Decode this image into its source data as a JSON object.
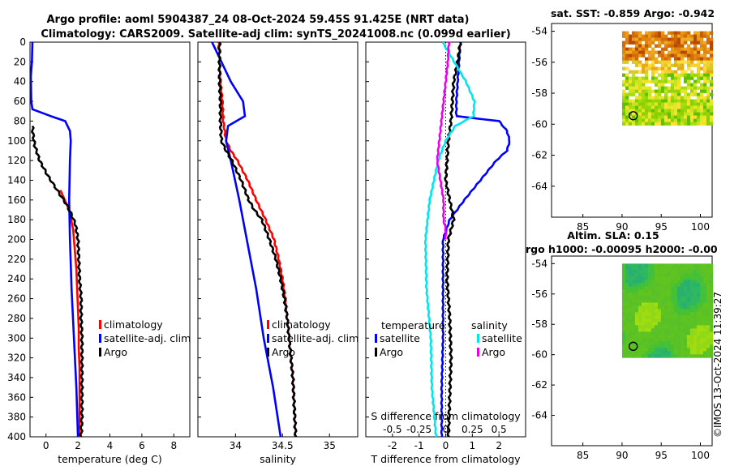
{
  "header": {
    "line1": "Argo profile: aoml 5904387_24 08-Oct-2024 59.45S 91.425E (NRT data)",
    "line2": "Climatology: CARS2009. Satellite-adj clim: synTS_20241008.nc (0.099d earlier)"
  },
  "watermark": "©IMOS 13-Oct-2024 11:39:27",
  "colors": {
    "climatology": "#ff0000",
    "satellite": "#0000ff",
    "argo": "#000000",
    "salinity_satellite": "#00e5ee",
    "salinity_argo": "#ee00ee"
  },
  "chart_data": [
    {
      "type": "line",
      "id": "temperature",
      "xlabel": "temperature (deg C)",
      "xlim": [
        -1,
        9
      ],
      "ylim": [
        400,
        0
      ],
      "xticks": [
        0,
        2,
        4,
        6,
        8
      ],
      "xtick_labels": [
        "0",
        "2",
        "4",
        "6",
        "8"
      ],
      "yticks": [
        0,
        20,
        40,
        60,
        80,
        100,
        120,
        140,
        160,
        180,
        200,
        220,
        240,
        260,
        280,
        300,
        320,
        340,
        360,
        380,
        400
      ],
      "ytick_labels": [
        "0",
        "20",
        "40",
        "60",
        "80",
        "100",
        "120",
        "140",
        "160",
        "180",
        "200",
        "220",
        "240",
        "260",
        "280",
        "300",
        "320",
        "340",
        "360",
        "380",
        "400"
      ],
      "legend": [
        "climatology",
        "satellite-adj. clim",
        "Argo"
      ],
      "series": [
        {
          "name": "climatology",
          "color": "#ff0000",
          "depth": [
            150,
            170,
            190,
            210,
            230,
            250,
            270,
            290,
            310,
            330,
            350,
            370,
            390,
            400
          ],
          "values": [
            0.9,
            1.45,
            1.7,
            1.8,
            1.9,
            1.95,
            2.0,
            2.05,
            2.05,
            2.1,
            2.1,
            2.1,
            2.1,
            2.1
          ]
        },
        {
          "name": "satellite-adj. clim",
          "color": "#0000ff",
          "depth": [
            0,
            20,
            35,
            60,
            68,
            75,
            80,
            90,
            100,
            120,
            160,
            200,
            250,
            300,
            350,
            400
          ],
          "values": [
            -0.85,
            -0.88,
            -0.95,
            -0.92,
            -0.85,
            0.3,
            1.2,
            1.5,
            1.55,
            1.5,
            1.45,
            1.5,
            1.6,
            1.75,
            1.9,
            2.0
          ]
        },
        {
          "name": "Argo",
          "color": "#000000",
          "depth": [
            85,
            95,
            105,
            120,
            135,
            145,
            155,
            165,
            175,
            185,
            200,
            220,
            240,
            260,
            280,
            300,
            320,
            340,
            360,
            380,
            400
          ],
          "values": [
            -0.85,
            -0.8,
            -0.7,
            -0.4,
            0.1,
            0.5,
            0.9,
            1.3,
            1.6,
            1.85,
            2.0,
            2.05,
            2.1,
            2.2,
            2.2,
            2.25,
            2.25,
            2.25,
            2.25,
            2.25,
            2.2
          ]
        }
      ]
    },
    {
      "type": "line",
      "id": "salinity",
      "xlabel": "salinity",
      "xlim": [
        33.6,
        35.3
      ],
      "ylim": [
        400,
        0
      ],
      "xticks": [
        34,
        34.5,
        35
      ],
      "xtick_labels": [
        "34",
        "34.5",
        "35"
      ],
      "legend": [
        "climatology",
        "satellite-adj. clim",
        "Argo"
      ],
      "series": [
        {
          "name": "climatology",
          "color": "#ff0000",
          "depth": [
            0,
            20,
            40,
            60,
            80,
            100,
            110,
            120,
            140,
            160,
            180,
            200,
            220,
            240,
            260,
            280,
            300,
            320,
            340,
            360,
            380,
            400
          ],
          "values": [
            33.82,
            33.83,
            33.84,
            33.86,
            33.87,
            33.9,
            33.95,
            34.02,
            34.13,
            34.22,
            34.32,
            34.41,
            34.46,
            34.5,
            34.53,
            34.55,
            34.57,
            34.59,
            34.61,
            34.62,
            34.63,
            34.64
          ]
        },
        {
          "name": "satellite-adj. clim",
          "color": "#0000ff",
          "depth": [
            0,
            20,
            40,
            60,
            75,
            85,
            100,
            120,
            160,
            200,
            250,
            300,
            350,
            400
          ],
          "values": [
            33.75,
            33.85,
            33.95,
            34.08,
            34.1,
            33.92,
            33.9,
            33.95,
            34.04,
            34.12,
            34.22,
            34.3,
            34.4,
            34.48
          ]
        },
        {
          "name": "Argo",
          "color": "#000000",
          "depth": [
            0,
            20,
            40,
            60,
            80,
            100,
            110,
            120,
            130,
            140,
            150,
            160,
            170,
            180,
            200,
            220,
            240,
            260,
            280,
            300,
            320,
            340,
            360,
            380,
            400
          ],
          "values": [
            33.83,
            33.83,
            33.83,
            33.84,
            33.84,
            33.85,
            33.9,
            33.96,
            34.01,
            34.06,
            34.1,
            34.14,
            34.2,
            34.28,
            34.36,
            34.43,
            34.48,
            34.52,
            34.55,
            34.57,
            34.59,
            34.61,
            34.62,
            34.63,
            34.64
          ]
        }
      ]
    },
    {
      "type": "line",
      "id": "differences",
      "xlabel": "T difference from climatology",
      "xlabel_top": "S difference from climatology",
      "xlim": [
        -3,
        3
      ],
      "ylim": [
        400,
        0
      ],
      "xticks": [
        -2,
        -1,
        0,
        1,
        2
      ],
      "xtick_labels": [
        "-2",
        "-1",
        "0",
        "1",
        "2"
      ],
      "s_ticks": [
        -0.5,
        -0.25,
        0,
        0.25,
        0.5
      ],
      "s_tick_labels": [
        "-0.5",
        "-0.25",
        "0",
        "0.25",
        "0.5"
      ],
      "legend_temperature_title": "temperature",
      "legend_salinity_title": "salinity",
      "legend_temperature": [
        "satellite",
        "Argo"
      ],
      "legend_salinity": [
        "satellite",
        "Argo"
      ],
      "series": [
        {
          "name": "temperature satellite",
          "color": "#0000ff",
          "depth": [
            0,
            20,
            40,
            60,
            75,
            80,
            90,
            100,
            110,
            120,
            140,
            160,
            180,
            200,
            250,
            300,
            350,
            400
          ],
          "values": [
            0.55,
            0.5,
            0.45,
            0.4,
            0.4,
            2.0,
            2.3,
            2.4,
            2.3,
            1.9,
            1.3,
            0.7,
            0.15,
            -0.1,
            -0.1,
            -0.1,
            -0.15,
            -0.15
          ]
        },
        {
          "name": "temperature Argo",
          "color": "#000000",
          "depth": [
            0,
            20,
            40,
            60,
            80,
            100,
            120,
            140,
            160,
            180,
            200,
            240,
            280,
            320,
            360,
            400
          ],
          "values": [
            0.55,
            0.45,
            0.3,
            0.25,
            0.2,
            0.1,
            0.05,
            0.0,
            0.15,
            0.3,
            0.1,
            0.05,
            0.15,
            0.2,
            0.15,
            0.1
          ]
        },
        {
          "name": "salinity satellite",
          "color": "#00e5ee",
          "depth": [
            0,
            20,
            40,
            60,
            75,
            85,
            100,
            120,
            140,
            160,
            200,
            250,
            300,
            350,
            400
          ],
          "values": [
            -0.03,
            0.08,
            0.19,
            0.27,
            0.26,
            0.09,
            0.0,
            -0.07,
            -0.11,
            -0.15,
            -0.19,
            -0.18,
            -0.14,
            -0.13,
            -0.09
          ]
        },
        {
          "name": "salinity Argo",
          "color": "#ee00ee",
          "depth": [
            0,
            20,
            40,
            60,
            80,
            100,
            120,
            140,
            160,
            180,
            190,
            200
          ],
          "values": [
            0.03,
            0.02,
            0.0,
            -0.02,
            -0.04,
            -0.06,
            -0.08,
            -0.05,
            -0.02,
            -0.02,
            0.0,
            0.0
          ]
        }
      ]
    },
    {
      "type": "heatmap",
      "id": "sst_map",
      "title": "sat. SST: -0.859 Argo: -0.942",
      "xlim": [
        81,
        101.5
      ],
      "ylim": [
        -66,
        -53.5
      ],
      "xticks": [
        85,
        90,
        95,
        100
      ],
      "xtick_labels": [
        "85",
        "90",
        "95",
        "100"
      ],
      "yticks": [
        -54,
        -56,
        -58,
        -60,
        -62,
        -64
      ],
      "ytick_labels": [
        "-54",
        "-56",
        "-58",
        "-60",
        "-62",
        "-64"
      ],
      "data_extent": {
        "lon": [
          90,
          101.5
        ],
        "lat": [
          -60,
          -54
        ]
      },
      "argo_position": {
        "lon": 91.425,
        "lat": -59.45
      }
    },
    {
      "type": "heatmap",
      "id": "sla_map",
      "title1": "Altim. SLA: 0.15",
      "title2": "rgo h1000: -0.00095 h2000: -0.00",
      "xlim": [
        81,
        101.5
      ],
      "ylim": [
        -66,
        -53.5
      ],
      "xticks": [
        85,
        90,
        95,
        100
      ],
      "xtick_labels": [
        "85",
        "90",
        "95",
        "100"
      ],
      "yticks": [
        -54,
        -56,
        -58,
        -60,
        -62,
        -64
      ],
      "ytick_labels": [
        "-54",
        "-56",
        "-58",
        "-60",
        "-62",
        "-64"
      ],
      "data_extent": {
        "lon": [
          90,
          101.5
        ],
        "lat": [
          -60,
          -54
        ]
      },
      "argo_position": {
        "lon": 91.425,
        "lat": -59.45
      }
    }
  ]
}
